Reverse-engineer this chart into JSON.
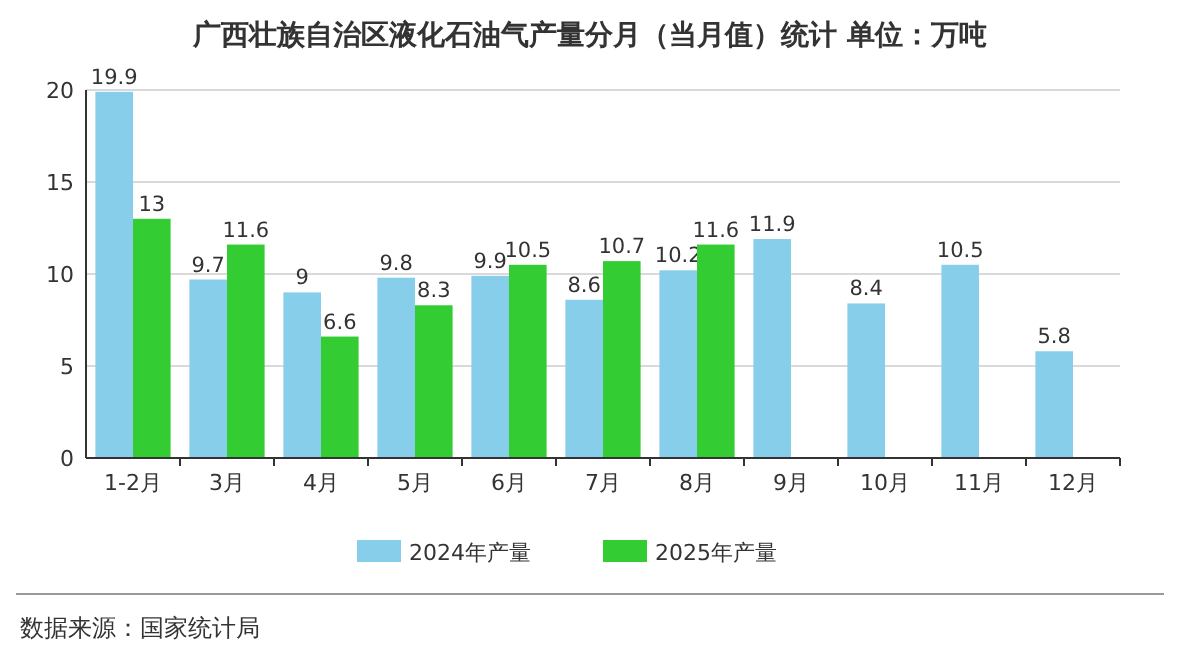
{
  "chart_data": {
    "type": "bar",
    "title": "广西壮族自治区液化石油气产量分月（当月值）统计  单位：万吨",
    "categories": [
      "1-2月",
      "3月",
      "4月",
      "5月",
      "6月",
      "7月",
      "8月",
      "9月",
      "10月",
      "11月",
      "12月"
    ],
    "series": [
      {
        "name": "2024年产量",
        "color": "#87ceeb",
        "values": [
          19.9,
          9.7,
          9,
          9.8,
          9.9,
          8.6,
          10.2,
          11.9,
          8.4,
          10.5,
          5.8
        ]
      },
      {
        "name": "2025年产量",
        "color": "#33cc33",
        "values": [
          13,
          11.6,
          6.6,
          8.3,
          10.5,
          10.7,
          11.6,
          null,
          null,
          null,
          null
        ]
      }
    ],
    "ylim": [
      0,
      20
    ],
    "yticks": [
      0,
      5,
      10,
      15,
      20
    ],
    "grid": "y",
    "legend": "bottom",
    "data_labels": true,
    "annotations": [
      "数据来源：国家统计局"
    ]
  }
}
